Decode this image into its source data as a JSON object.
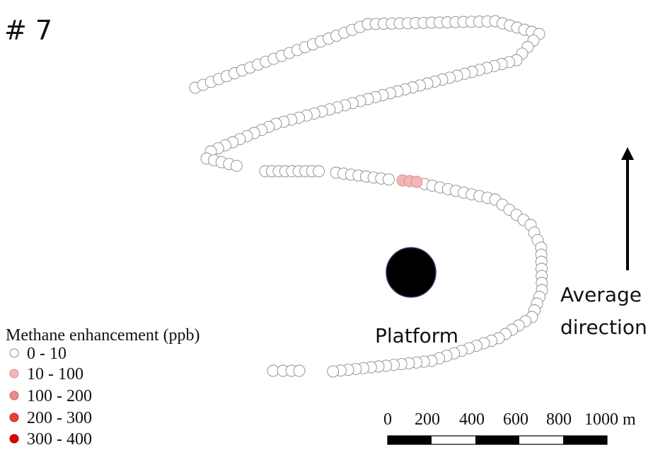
{
  "title": "# 7",
  "platform_label": "Platform",
  "direction_label_line1": "Average",
  "direction_label_line2": "direction",
  "legend": {
    "title": "Methane enhancement (ppb)",
    "items": [
      {
        "label": "0 - 10",
        "color": "#ffffff"
      },
      {
        "label": "10 - 100",
        "color": "#f4b6b6"
      },
      {
        "label": "100 - 200",
        "color": "#ec8a8a"
      },
      {
        "label": "200 - 300",
        "color": "#e84141"
      },
      {
        "label": "300 - 400",
        "color": "#e00000"
      }
    ]
  },
  "scale_bar": {
    "labels": [
      "0",
      "200",
      "400",
      "600",
      "800",
      "1000 m"
    ]
  }
}
